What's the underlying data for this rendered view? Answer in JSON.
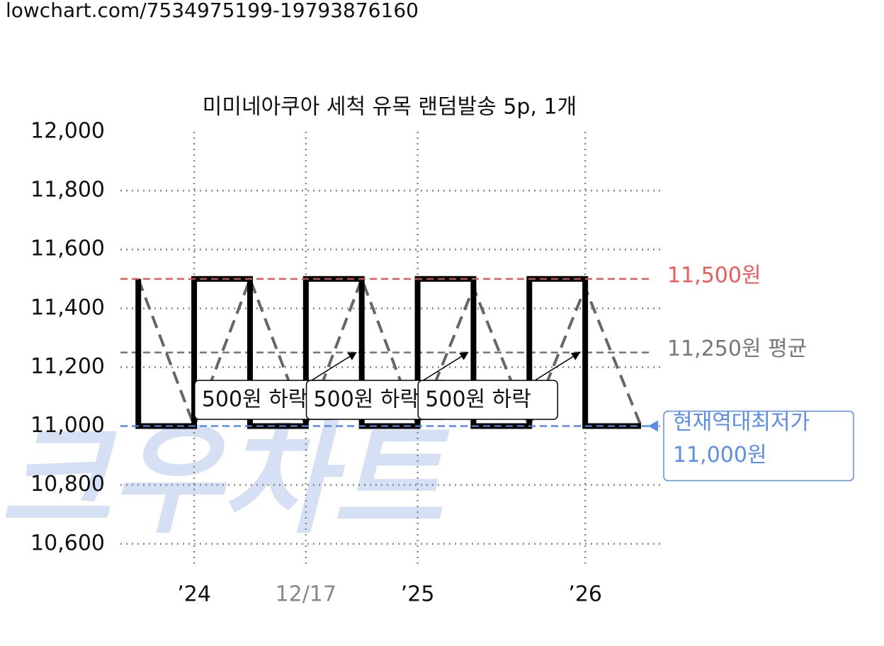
{
  "url": "lowchart.com/7534975199-19793876160",
  "chart_data": {
    "type": "line",
    "title": "미미네아쿠아 세척 유목 랜덤발송 5p, 1개",
    "watermark": "크우차트",
    "xlim": [
      -0.32,
      9.38
    ],
    "xticks": [
      {
        "value": 1,
        "label": "’24"
      },
      {
        "value": 3,
        "label": "12/17"
      },
      {
        "value": 5,
        "label": "’25"
      },
      {
        "value": 8,
        "label": "’26"
      }
    ],
    "xtick_colors": [
      "#111111",
      "#888888",
      "#111111",
      "#111111"
    ],
    "ylim": [
      10520,
      12000
    ],
    "yticks": [
      {
        "value": 10600,
        "label": "10,600"
      },
      {
        "value": 10800,
        "label": "10,800"
      },
      {
        "value": 11000,
        "label": "11,000"
      },
      {
        "value": 11200,
        "label": "11,200"
      },
      {
        "value": 11400,
        "label": "11,400"
      },
      {
        "value": 11600,
        "label": "11,600"
      },
      {
        "value": 11800,
        "label": "11,800"
      },
      {
        "value": 12000,
        "label": "12,000"
      }
    ],
    "grid": true,
    "series": [
      {
        "color": "#666666",
        "dashed": true,
        "x": [
          0,
          1,
          2,
          3,
          4,
          5,
          6,
          7,
          8,
          9
        ],
        "values": [
          11500,
          11000,
          11500,
          11000,
          11500,
          11000,
          11470,
          11000,
          11470,
          11000
        ]
      },
      {
        "color": "#000000",
        "dashed": false,
        "x": [
          0,
          0,
          1,
          1,
          2,
          2,
          3,
          3,
          4,
          4,
          5,
          5,
          6,
          6,
          7,
          7,
          8,
          8,
          9
        ],
        "values": [
          11500,
          11000,
          11000,
          11500,
          11500,
          11000,
          11000,
          11500,
          11500,
          11000,
          11000,
          11500,
          11500,
          11000,
          11000,
          11500,
          11500,
          11000,
          11000
        ]
      }
    ],
    "reference_lines": [
      {
        "value": 11500,
        "color": "#f05a5a",
        "labels": [
          "11,500원"
        ]
      },
      {
        "value": 11250,
        "color": "#777777",
        "labels": [
          "11,250원 평균"
        ]
      },
      {
        "value": 11000,
        "color": "#5b8def",
        "labels": [
          "현재역대최저가",
          "11,000원"
        ],
        "boxed": true
      }
    ],
    "annotations": [
      {
        "text": "500원 하락",
        "x": 3.9,
        "y": 11250
      },
      {
        "text": "500원 하락",
        "x": 5.9,
        "y": 11250
      },
      {
        "text": "500원 하락",
        "x": 7.9,
        "y": 11250
      }
    ]
  }
}
